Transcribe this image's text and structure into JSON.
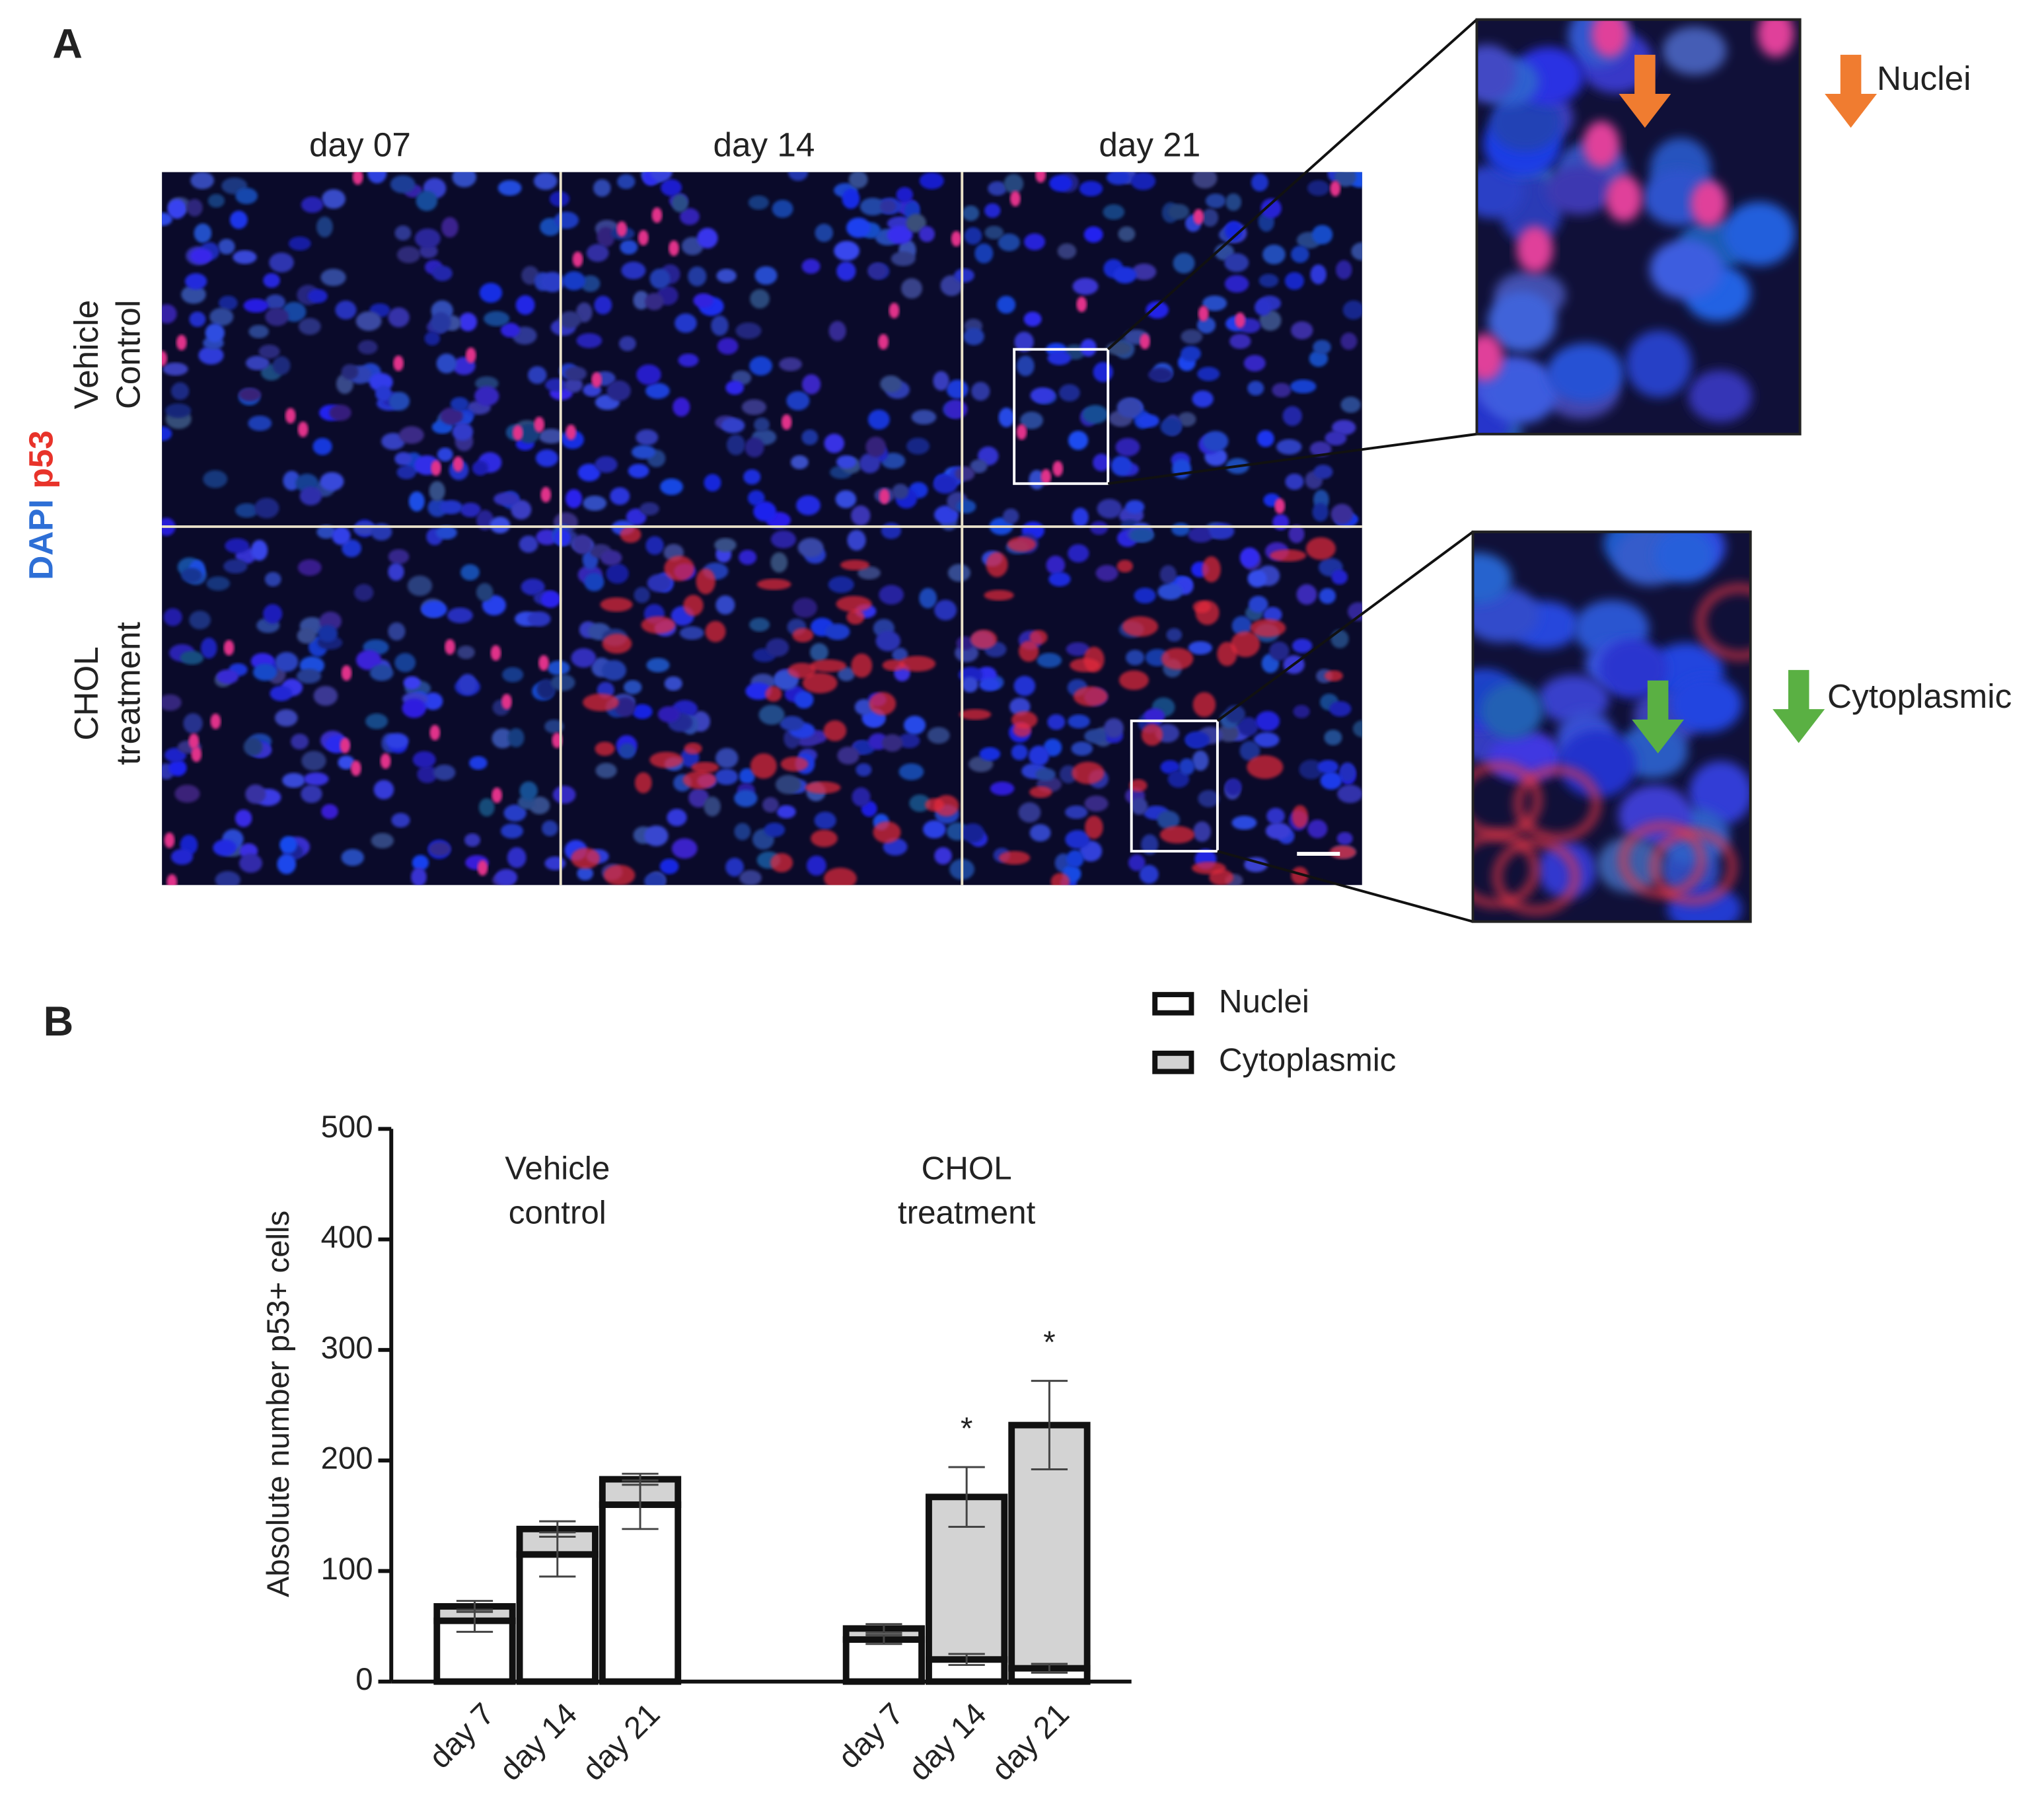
{
  "panel_a": {
    "label": "A",
    "columns": [
      "day 07",
      "day 14",
      "day 21"
    ],
    "rows": [
      [
        "Vehicle",
        "Control"
      ],
      [
        "CHOL",
        "treatment"
      ]
    ],
    "stain": [
      "DAPI",
      "p53"
    ],
    "insets": [
      "Nuclei",
      "Cytoplasmic"
    ]
  },
  "chart_data": {
    "type": "bar",
    "stacked": true,
    "panel_label": "B",
    "y_label": "Absolute number p53+ cells",
    "groups": [
      {
        "label": [
          "Vehicle",
          "control"
        ],
        "categories": [
          "day 7",
          "day 14",
          "day 21"
        ]
      },
      {
        "label": [
          "CHOL",
          "treatment"
        ],
        "categories": [
          "day 7",
          "day 14",
          "day 21"
        ]
      }
    ],
    "series": [
      {
        "name": "Nuclei",
        "color": "#ffffff",
        "values": [
          55,
          115,
          160,
          38,
          20,
          12
        ],
        "errors": [
          10,
          20,
          22,
          4,
          5,
          4
        ]
      },
      {
        "name": "Cytoplasmic",
        "color": "#d3d3d3",
        "values": [
          13,
          23,
          23,
          10,
          147,
          220
        ],
        "errors": [
          5,
          7,
          5,
          4,
          27,
          40
        ]
      }
    ],
    "significance": [
      null,
      null,
      null,
      null,
      "*",
      "*"
    ],
    "ylim": [
      0,
      500
    ],
    "yticks": [
      0,
      100,
      200,
      300,
      400,
      500
    ]
  }
}
